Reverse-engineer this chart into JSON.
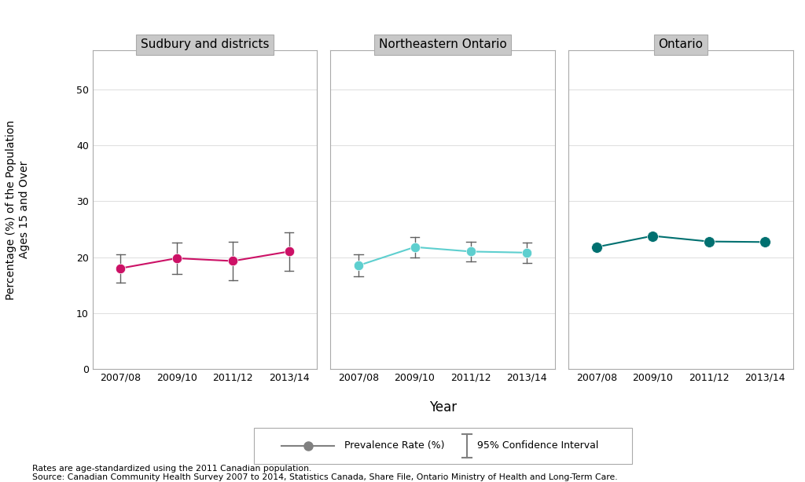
{
  "panels": [
    {
      "title": "Sudbury and districts",
      "color": "#CC1166",
      "years": [
        "2007/08",
        "2009/10",
        "2011/12",
        "2013/14"
      ],
      "values": [
        18.0,
        19.8,
        19.3,
        21.0
      ],
      "ci_low": [
        15.5,
        17.0,
        15.8,
        17.5
      ],
      "ci_high": [
        20.5,
        22.6,
        22.8,
        24.5
      ]
    },
    {
      "title": "Northeastern Ontario",
      "color": "#5ECFCF",
      "years": [
        "2007/08",
        "2009/10",
        "2011/12",
        "2013/14"
      ],
      "values": [
        18.5,
        21.8,
        21.0,
        20.8
      ],
      "ci_low": [
        16.5,
        20.0,
        19.2,
        19.0
      ],
      "ci_high": [
        20.5,
        23.6,
        22.8,
        22.6
      ]
    },
    {
      "title": "Ontario",
      "color": "#007070",
      "years": [
        "2007/08",
        "2009/10",
        "2011/12",
        "2013/14"
      ],
      "values": [
        21.8,
        23.8,
        22.8,
        22.7
      ],
      "ci_low": [
        21.8,
        23.8,
        22.8,
        22.7
      ],
      "ci_high": [
        21.8,
        23.8,
        22.8,
        22.7
      ]
    }
  ],
  "ylabel": "Percentage (%) of the Population\nAges 15 and Over",
  "xlabel": "Year",
  "ylim": [
    0,
    57
  ],
  "yticks": [
    0,
    10,
    20,
    30,
    40,
    50
  ],
  "legend_label_rate": "Prevalence Rate (%)",
  "legend_label_ci": "95% Confidence Interval",
  "footnote1": "Rates are age-standardized using the 2011 Canadian population.",
  "footnote2": "Source: Canadian Community Health Survey 2007 to 2014, Statistics Canada, Share File, Ontario Ministry of Health and Long-Term Care.",
  "panel_bg": "#FFFFFF",
  "title_bg": "#C8C8C8",
  "grid_color": "#E0E0E0",
  "ci_color": "#606060",
  "fig_bg": "#FFFFFF"
}
